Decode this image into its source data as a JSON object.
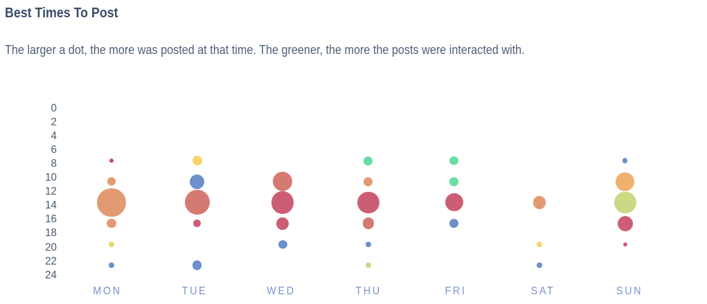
{
  "header": {
    "title": "Best Times To Post",
    "subtitle": "The larger a dot, the more was posted at that time. The greener, the more the posts were interacted with."
  },
  "chart_data": {
    "type": "scatter",
    "subtype": "bubble",
    "title": "Best Times To Post",
    "xlabel": "",
    "ylabel": "",
    "x_categories": [
      "MON",
      "TUE",
      "WED",
      "THU",
      "FRI",
      "SAT",
      "SUN"
    ],
    "y_ticks": [
      "0",
      "2",
      "4",
      "6",
      "8",
      "10",
      "12",
      "14",
      "16",
      "18",
      "20",
      "22",
      "24"
    ],
    "y_range": [
      0,
      24
    ],
    "y_unit": "hour of day",
    "grid": false,
    "legend": false,
    "size_meaning": "amount posted at that time",
    "color_meaning": "greener = more interactions",
    "series": [
      {
        "day": "MON",
        "points": [
          {
            "hour": 7.5,
            "r": 3.4,
            "color": "#c34e6c"
          },
          {
            "hour": 10.5,
            "r": 5.8,
            "color": "#e39a73"
          },
          {
            "hour": 13.5,
            "r": 20.8,
            "color": "#e39a73"
          },
          {
            "hour": 16.5,
            "r": 6.7,
            "color": "#e39a73"
          },
          {
            "hour": 19.5,
            "r": 4.0,
            "color": "#e6d76e"
          },
          {
            "hour": 22.5,
            "r": 3.7,
            "color": "#6b90ca"
          }
        ]
      },
      {
        "day": "TUE",
        "points": [
          {
            "hour": 7.5,
            "r": 7.2,
            "color": "#fcd36c"
          },
          {
            "hour": 10.5,
            "r": 10.7,
            "color": "#6b90ca"
          },
          {
            "hour": 13.5,
            "r": 18.0,
            "color": "#d57973"
          },
          {
            "hour": 16.5,
            "r": 5.8,
            "color": "#cb5e75"
          },
          {
            "hour": 22.5,
            "r": 6.6,
            "color": "#6b90ca"
          }
        ]
      },
      {
        "day": "WED",
        "points": [
          {
            "hour": 10.5,
            "r": 14.2,
            "color": "#d57973"
          },
          {
            "hour": 13.5,
            "r": 16.2,
            "color": "#cb5e75"
          },
          {
            "hour": 16.5,
            "r": 8.9,
            "color": "#cb5e75"
          },
          {
            "hour": 19.5,
            "r": 6.3,
            "color": "#6b90ca"
          }
        ]
      },
      {
        "day": "THU",
        "points": [
          {
            "hour": 7.5,
            "r": 6.5,
            "color": "#69dda1"
          },
          {
            "hour": 10.5,
            "r": 6.6,
            "color": "#e39a73"
          },
          {
            "hour": 13.5,
            "r": 15.7,
            "color": "#cb5e75"
          },
          {
            "hour": 16.5,
            "r": 8.4,
            "color": "#d57973"
          },
          {
            "hour": 19.5,
            "r": 3.9,
            "color": "#6b90ca"
          },
          {
            "hour": 22.5,
            "r": 4.0,
            "color": "#cad983"
          }
        ]
      },
      {
        "day": "FRI",
        "points": [
          {
            "hour": 7.5,
            "r": 6.3,
            "color": "#69dda1"
          },
          {
            "hour": 10.5,
            "r": 6.3,
            "color": "#69dda1"
          },
          {
            "hour": 13.5,
            "r": 13.0,
            "color": "#cb5e75"
          },
          {
            "hour": 16.5,
            "r": 6.4,
            "color": "#6b90ca"
          }
        ]
      },
      {
        "day": "SAT",
        "points": [
          {
            "hour": 13.5,
            "r": 9.1,
            "color": "#e39a73"
          },
          {
            "hour": 19.5,
            "r": 4.1,
            "color": "#fcd36c"
          },
          {
            "hour": 22.5,
            "r": 3.8,
            "color": "#6b90ca"
          }
        ]
      },
      {
        "day": "SUN",
        "points": [
          {
            "hour": 7.5,
            "r": 3.6,
            "color": "#6b90ca"
          },
          {
            "hour": 10.5,
            "r": 13.3,
            "color": "#efb26e"
          },
          {
            "hour": 13.5,
            "r": 15.9,
            "color": "#cad983"
          },
          {
            "hour": 16.5,
            "r": 10.9,
            "color": "#cb5e75"
          },
          {
            "hour": 19.5,
            "r": 3.2,
            "color": "#cb5e75"
          }
        ]
      }
    ]
  },
  "colors": {
    "background": "#ffffff",
    "title_text": "#3c4d66",
    "subtitle_text": "#4e6078",
    "y_axis_text": "#48596f",
    "x_axis_text": "#7a93ce"
  }
}
